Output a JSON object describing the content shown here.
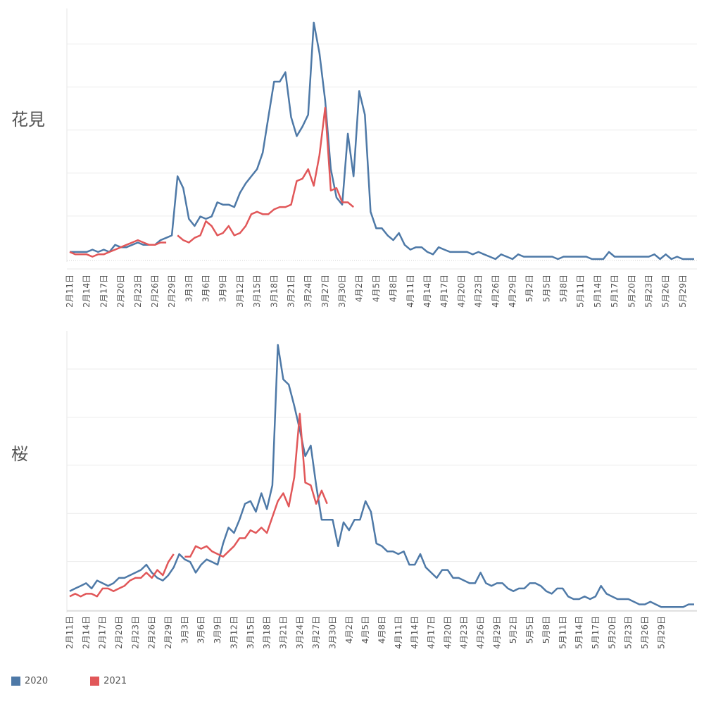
{
  "colors": {
    "2020": "#4e79a7",
    "2021": "#e15759",
    "grid": "#ececec",
    "text": "#555555"
  },
  "legend": [
    {
      "label": "2020",
      "color": "#4e79a7"
    },
    {
      "label": "2021",
      "color": "#e15759"
    }
  ],
  "chart_data": [
    {
      "type": "line",
      "row_label": "花見",
      "x_tick_labels": [
        "2月11日",
        "2月14日",
        "2月17日",
        "2月20日",
        "2月23日",
        "2月26日",
        "2月29日",
        "3月3日",
        "3月6日",
        "3月9日",
        "3月12日",
        "3月15日",
        "3月18日",
        "3月21日",
        "3月24日",
        "3月27日",
        "3月30日",
        "4月2日",
        "4月5日",
        "4月8日",
        "4月11日",
        "4月14日",
        "4月17日",
        "4月20日",
        "4月23日",
        "4月26日",
        "4月29日",
        "5月2日",
        "5月5日",
        "5月8日",
        "5月11日",
        "5月14日",
        "5月17日",
        "5月20日",
        "5月23日",
        "5月26日",
        "5月29日"
      ],
      "ylim": [
        0,
        100
      ],
      "grid": true,
      "series": [
        {
          "name": "2020",
          "values": [
            3,
            3,
            3,
            3,
            4,
            3,
            4,
            3,
            6,
            5,
            5,
            6,
            7,
            6,
            6,
            6,
            8,
            9,
            10,
            35,
            30,
            17,
            14,
            18,
            17,
            18,
            24,
            23,
            23,
            22,
            28,
            32,
            35,
            38,
            45,
            60,
            75,
            75,
            79,
            60,
            52,
            56,
            61,
            100,
            87,
            67,
            38,
            26,
            23,
            53,
            35,
            71,
            61,
            20,
            13,
            13,
            10,
            8,
            11,
            6,
            4,
            5,
            5,
            3,
            2,
            5,
            4,
            3,
            3,
            3,
            3,
            2,
            3,
            2,
            1,
            0,
            2,
            1,
            0,
            2,
            1,
            1,
            1,
            1,
            1,
            1,
            0,
            1,
            1,
            1,
            1,
            1,
            0,
            0,
            0,
            3,
            1,
            1,
            1,
            1,
            1,
            1,
            1,
            2,
            0,
            2,
            0,
            1,
            0,
            0,
            0
          ]
        },
        {
          "name": "2021",
          "values": [
            3,
            2,
            2,
            2,
            1,
            2,
            2,
            3,
            4,
            5,
            6,
            7,
            8,
            7,
            6,
            6,
            7,
            7,
            null,
            10,
            8,
            7,
            9,
            10,
            16,
            14,
            10,
            11,
            14,
            10,
            11,
            14,
            19,
            20,
            19,
            19,
            21,
            22,
            22,
            23,
            33,
            34,
            38,
            31,
            44,
            64,
            29,
            30,
            24,
            24,
            22
          ]
        }
      ]
    },
    {
      "type": "line",
      "row_label": "桜",
      "x_tick_labels": [
        "2月11日",
        "2月14日",
        "2月17日",
        "2月20日",
        "2月23日",
        "2月26日",
        "2月29日",
        "3月3日",
        "3月6日",
        "3月9日",
        "3月12日",
        "3月15日",
        "3月18日",
        "3月21日",
        "3月24日",
        "3月27日",
        "3月30日",
        "4月2日",
        "4月5日",
        "4月8日",
        "4月11日",
        "4月14日",
        "4月17日",
        "4月20日",
        "4月23日",
        "4月26日",
        "4月29日",
        "5月2日",
        "5月5日",
        "5月8日",
        "5月11日",
        "5月14日",
        "5月17日",
        "5月20日",
        "5月23日",
        "5月26日",
        "5月29日"
      ],
      "ylim": [
        0,
        100
      ],
      "grid": true,
      "series": [
        {
          "name": "2020",
          "values": [
            7,
            8,
            9,
            10,
            8,
            11,
            10,
            9,
            10,
            12,
            12,
            13,
            14,
            15,
            17,
            14,
            12,
            11,
            13,
            16,
            21,
            19,
            18,
            14,
            17,
            19,
            18,
            17,
            25,
            31,
            29,
            34,
            40,
            41,
            37,
            44,
            38,
            47,
            100,
            87,
            85,
            77,
            68,
            58,
            62,
            47,
            34,
            34,
            34,
            24,
            33,
            30,
            34,
            34,
            41,
            37,
            25,
            24,
            22,
            22,
            21,
            22,
            17,
            17,
            21,
            16,
            14,
            12,
            15,
            15,
            12,
            12,
            11,
            10,
            10,
            14,
            10,
            9,
            10,
            10,
            8,
            7,
            8,
            8,
            10,
            10,
            9,
            7,
            6,
            8,
            8,
            5,
            4,
            4,
            5,
            4,
            5,
            9,
            6,
            5,
            4,
            4,
            4,
            3,
            2,
            2,
            3,
            2,
            1,
            1,
            1,
            1,
            1,
            2,
            2
          ]
        },
        {
          "name": "2021",
          "values": [
            5,
            6,
            5,
            6,
            6,
            5,
            8,
            8,
            7,
            8,
            9,
            11,
            12,
            12,
            14,
            12,
            15,
            13,
            18,
            21,
            null,
            20,
            20,
            24,
            23,
            24,
            22,
            21,
            20,
            22,
            24,
            27,
            27,
            30,
            29,
            31,
            29,
            35,
            41,
            44,
            39,
            50,
            74,
            48,
            47,
            40,
            45,
            40
          ]
        }
      ]
    }
  ]
}
